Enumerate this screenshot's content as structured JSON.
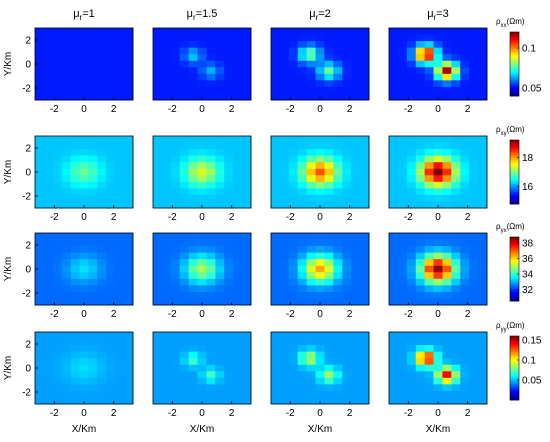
{
  "chart_data": {
    "type": "heatmap",
    "column_titles": [
      {
        "base": "μ",
        "sub": "r",
        "tail": "=1"
      },
      {
        "base": "μ",
        "sub": "r",
        "tail": "=1.5"
      },
      {
        "base": "μ",
        "sub": "r",
        "tail": "=2"
      },
      {
        "base": "μ",
        "sub": "r",
        "tail": "=3"
      }
    ],
    "ylabel": "Y/Km",
    "xlabel": "X/Km",
    "xticks": [
      "-2",
      "0",
      "2"
    ],
    "yticks": [
      "2",
      "0",
      "-2"
    ],
    "xlim": [
      -3.3,
      3.3
    ],
    "ylim": [
      -3.0,
      3.0
    ],
    "colormap": "jet",
    "rows": [
      {
        "component": "xx",
        "colorbar_label": {
          "base": "ρ",
          "sub": "xx",
          "tail": "(Ωm)"
        },
        "colorbar_range": [
          0.04,
          0.12
        ],
        "colorbar_ticks": [
          "0.1",
          "0.05"
        ],
        "colorbar_tick_values": [
          0.1,
          0.05
        ],
        "panels": [
          {
            "mu_r": 1,
            "background": 0.052,
            "anomalies": []
          },
          {
            "mu_r": 1.5,
            "background": 0.052,
            "anomalies": [
              {
                "x": -0.6,
                "y": 0.7,
                "peak": 0.066,
                "r": 0.45
              },
              {
                "x": 0.6,
                "y": -0.6,
                "peak": 0.064,
                "r": 0.45
              }
            ]
          },
          {
            "mu_r": 2,
            "background": 0.052,
            "anomalies": [
              {
                "x": -0.7,
                "y": 0.8,
                "peak": 0.08,
                "r": 0.5
              },
              {
                "x": 0.6,
                "y": -0.6,
                "peak": 0.078,
                "r": 0.5
              }
            ]
          },
          {
            "mu_r": 3,
            "background": 0.052,
            "anomalies": [
              {
                "x": -0.8,
                "y": 0.8,
                "peak": 0.118,
                "r": 0.5
              },
              {
                "x": 0.6,
                "y": -0.6,
                "peak": 0.116,
                "r": 0.5
              }
            ]
          }
        ]
      },
      {
        "component": "xy",
        "colorbar_label": {
          "base": "ρ",
          "sub": "xy",
          "tail": "(Ωm)"
        },
        "colorbar_range": [
          14.8,
          19.2
        ],
        "colorbar_ticks": [
          "18",
          "16"
        ],
        "colorbar_tick_values": [
          18,
          16
        ],
        "panels": [
          {
            "mu_r": 1,
            "background": 16.2,
            "anomalies": [
              {
                "x": 0,
                "y": 0,
                "peak": 16.9,
                "r": 0.8
              }
            ]
          },
          {
            "mu_r": 1.5,
            "background": 16.2,
            "anomalies": [
              {
                "x": 0,
                "y": 0,
                "peak": 17.4,
                "r": 0.8
              }
            ]
          },
          {
            "mu_r": 2,
            "background": 16.2,
            "anomalies": [
              {
                "x": 0,
                "y": 0,
                "peak": 18.3,
                "r": 0.8
              }
            ]
          },
          {
            "mu_r": 3,
            "background": 16.2,
            "anomalies": [
              {
                "x": 0,
                "y": 0,
                "peak": 19.2,
                "r": 0.8
              }
            ]
          }
        ]
      },
      {
        "component": "yx",
        "colorbar_label": {
          "base": "ρ",
          "sub": "yx",
          "tail": "(Ωm)"
        },
        "colorbar_range": [
          30.5,
          38.8
        ],
        "colorbar_ticks": [
          "38",
          "36",
          "34",
          "32"
        ],
        "colorbar_tick_values": [
          38,
          36,
          34,
          32
        ],
        "panels": [
          {
            "mu_r": 1,
            "background": 32.4,
            "anomalies": [
              {
                "x": 0,
                "y": 0,
                "peak": 33.4,
                "r": 0.8
              }
            ]
          },
          {
            "mu_r": 1.5,
            "background": 32.4,
            "anomalies": [
              {
                "x": 0,
                "y": 0,
                "peak": 35.0,
                "r": 0.8
              }
            ]
          },
          {
            "mu_r": 2,
            "background": 32.4,
            "anomalies": [
              {
                "x": 0,
                "y": 0,
                "peak": 36.4,
                "r": 0.8
              }
            ]
          },
          {
            "mu_r": 3,
            "background": 32.4,
            "anomalies": [
              {
                "x": 0,
                "y": 0,
                "peak": 38.6,
                "r": 0.8
              }
            ]
          }
        ]
      },
      {
        "component": "yy",
        "colorbar_label": {
          "base": "ρ",
          "sub": "yy",
          "tail": "(Ωm)"
        },
        "colorbar_range": [
          0.0,
          0.16
        ],
        "colorbar_ticks": [
          "0.15",
          "0.1",
          "0.05"
        ],
        "colorbar_tick_values": [
          0.15,
          0.1,
          0.05
        ],
        "panels": [
          {
            "mu_r": 1,
            "background": 0.045,
            "anomalies": [
              {
                "x": 0,
                "y": 0,
                "peak": 0.055,
                "r": 0.9
              }
            ]
          },
          {
            "mu_r": 1.5,
            "background": 0.045,
            "anomalies": [
              {
                "x": -0.6,
                "y": 0.7,
                "peak": 0.07,
                "r": 0.4
              },
              {
                "x": 0.6,
                "y": -0.6,
                "peak": 0.07,
                "r": 0.4
              }
            ]
          },
          {
            "mu_r": 2,
            "background": 0.045,
            "anomalies": [
              {
                "x": -0.7,
                "y": 0.8,
                "peak": 0.09,
                "r": 0.45
              },
              {
                "x": 0.6,
                "y": -0.6,
                "peak": 0.085,
                "r": 0.45
              }
            ]
          },
          {
            "mu_r": 3,
            "background": 0.045,
            "anomalies": [
              {
                "x": -0.8,
                "y": 0.8,
                "peak": 0.15,
                "r": 0.45
              },
              {
                "x": 0.6,
                "y": -0.6,
                "peak": 0.14,
                "r": 0.45
              }
            ]
          }
        ]
      }
    ]
  }
}
